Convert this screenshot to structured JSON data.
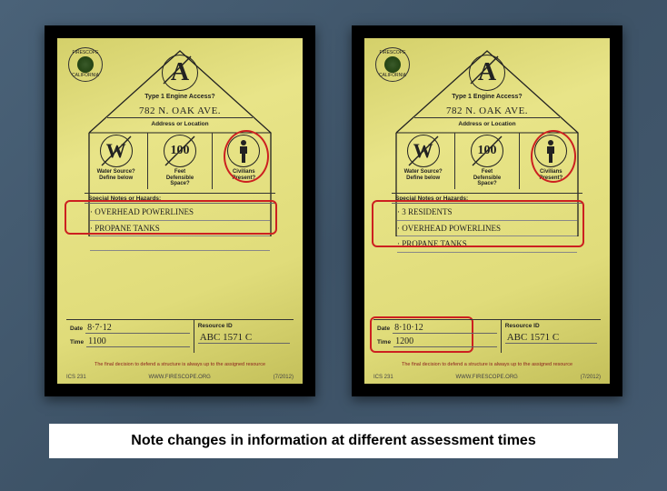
{
  "caption": "Note changes in information at different assessment times",
  "card_labels": {
    "logo_top": "FIRESCOPE",
    "logo_bottom": "CALIFORNIA",
    "type1": "Type 1 Engine Access?",
    "addr_label": "Address or Location",
    "water_l1": "Water Source?",
    "water_l2": "Define below",
    "feet_top": "100",
    "feet_l1": "Feet",
    "feet_l2": "Defensible",
    "feet_l3": "Space?",
    "civ_l1": "Civilians",
    "civ_l2": "Present?",
    "notes_header": "Special Notes or Hazards:",
    "date_label": "Date",
    "time_label": "Time",
    "res_label": "Resource ID",
    "footer_text": "The final decision to defend a structure is always up to the assigned resource",
    "ics": "ICS 231",
    "url": "WWW.FIRESCOPE.ORG",
    "rev": "(7/2012)"
  },
  "cards": [
    {
      "address": "782 N. OAK AVE.",
      "notes": [
        "· OVERHEAD POWERLINES",
        "· PROPANE TANKS",
        ""
      ],
      "date": "8·7·12",
      "time": "1100",
      "resource_id": "ABC 1571 C",
      "highlight_notes_height": 34,
      "highlight_date": false
    },
    {
      "address": "782 N. OAK AVE.",
      "notes": [
        "· 3 RESIDENTS",
        "· OVERHEAD POWERLINES",
        "· PROPANE TANKS"
      ],
      "date": "8·10·12",
      "time": "1200",
      "resource_id": "ABC 1571 C",
      "highlight_notes_height": 48,
      "highlight_date": true
    }
  ],
  "colors": {
    "red_highlight": "#cc2020",
    "card_bg": "#e0dc7a"
  }
}
